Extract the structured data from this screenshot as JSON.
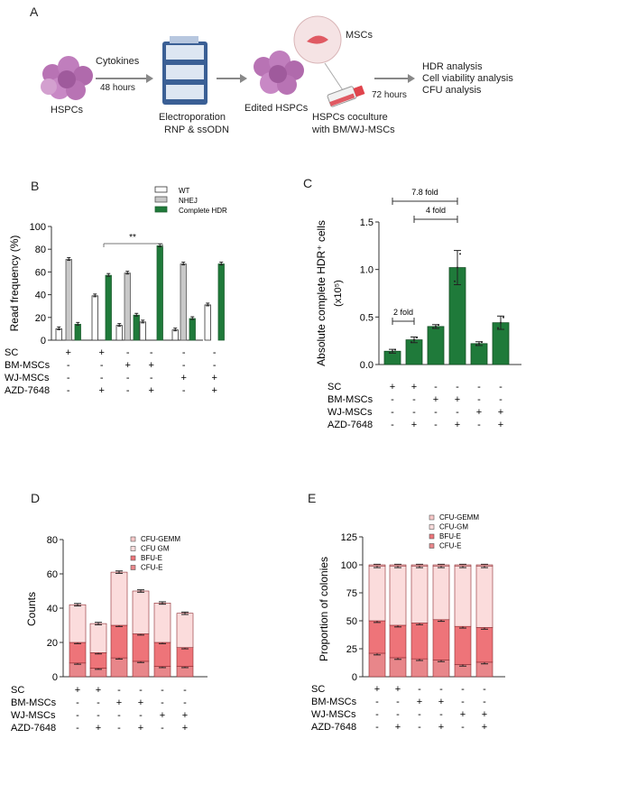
{
  "figure": {
    "panels": [
      "A",
      "B",
      "C",
      "D",
      "E"
    ],
    "schematic": {
      "hspcs": "HSPCs",
      "cytokines": "Cytokines",
      "hours48": "48 hours",
      "electroporation": "Electroporation",
      "rnp": "RNP & ssODN",
      "edited": "Edited HSPCs",
      "mscs": "MSCs",
      "coculture1": "HSPCs coculture",
      "coculture2": "with BM/WJ-MSCs",
      "hours72": "72 hours",
      "analysis": [
        "HDR analysis",
        "Cell viability analysis",
        "CFU analysis"
      ]
    },
    "condition_labels": [
      "SC",
      "BM-MSCs",
      "WJ-MSCs",
      "AZD-7648"
    ],
    "conditions": [
      [
        "+",
        "+",
        "-",
        "-",
        "-",
        "-"
      ],
      [
        "-",
        "-",
        "+",
        "+",
        "-",
        "-"
      ],
      [
        "-",
        "-",
        "-",
        "-",
        "+",
        "+"
      ],
      [
        "-",
        "+",
        "-",
        "+",
        "-",
        "+"
      ]
    ],
    "colors": {
      "wt": "#ffffff",
      "nhej": "#c8c8c8",
      "hdr": "#1f7a3a",
      "cfu_e": "#e8868a",
      "bfu_e": "#ee7479",
      "cfu_gm": "#fbdcdc",
      "cfu_gemm": "#f8c8c8"
    }
  },
  "chart_data": [
    {
      "panel": "B",
      "type": "bar",
      "ylabel": "Read frequency (%)",
      "ylim": [
        0,
        100
      ],
      "yticks": [
        0,
        20,
        40,
        60,
        80,
        100
      ],
      "categories": [
        "SC",
        "SC+AZD",
        "BM",
        "BM+AZD",
        "WJ",
        "WJ+AZD"
      ],
      "series": [
        {
          "name": "WT",
          "values": [
            10,
            39,
            13,
            16,
            9,
            31
          ]
        },
        {
          "name": "NHEJ",
          "values": [
            71,
            0,
            59,
            0,
            67,
            0
          ]
        },
        {
          "name": "Complete HDR",
          "values": [
            14,
            57,
            22,
            83,
            19,
            67
          ]
        }
      ],
      "annotation": "**"
    },
    {
      "panel": "C",
      "type": "bar",
      "ylabel": "Absolute complete HDR⁺ cells",
      "ylabel_unit": "(x10⁵)",
      "ylim": [
        0,
        1.5
      ],
      "yticks": [
        0.0,
        0.5,
        1.0,
        1.5
      ],
      "ytick_labels": [
        "0.0",
        "0.5",
        "1.0",
        "1.5"
      ],
      "categories": [
        "SC",
        "SC+AZD",
        "BM",
        "BM+AZD",
        "WJ",
        "WJ+AZD"
      ],
      "values": [
        0.14,
        0.26,
        0.4,
        1.02,
        0.22,
        0.44
      ],
      "annotations": [
        "2 fold",
        "4 fold",
        "7.8 fold"
      ]
    },
    {
      "panel": "D",
      "type": "bar",
      "stacked": true,
      "ylabel": "Counts",
      "ylim": [
        0,
        80
      ],
      "yticks": [
        0,
        20,
        40,
        60,
        80
      ],
      "categories": [
        "SC",
        "SC+AZD",
        "BM",
        "BM+AZD",
        "WJ",
        "WJ+AZD"
      ],
      "series": [
        {
          "name": "CFU-E",
          "values": [
            8,
            5,
            11,
            9,
            6,
            6
          ]
        },
        {
          "name": "BFU-E",
          "values": [
            12,
            9,
            19,
            16,
            14,
            11
          ]
        },
        {
          "name": "CFU GM",
          "values": [
            22,
            17,
            31,
            25,
            23,
            20
          ]
        },
        {
          "name": "CFU-GEMM",
          "values": [
            0,
            0,
            0,
            0,
            0,
            0
          ]
        }
      ],
      "legend": [
        "CFU-GEMM",
        "CFU GM",
        "BFU-E",
        "CFU-E"
      ]
    },
    {
      "panel": "E",
      "type": "bar",
      "stacked": true,
      "ylabel": "Proportion of colonies",
      "ylim": [
        0,
        125
      ],
      "yticks": [
        0,
        25,
        50,
        75,
        100,
        125
      ],
      "categories": [
        "SC",
        "SC+AZD",
        "BM",
        "BM+AZD",
        "WJ",
        "WJ+AZD"
      ],
      "series": [
        {
          "name": "CFU-E",
          "values": [
            21,
            17,
            16,
            15,
            11,
            13
          ]
        },
        {
          "name": "BFU-E",
          "values": [
            29,
            29,
            32,
            36,
            34,
            31
          ]
        },
        {
          "name": "CFU-GM",
          "values": [
            49,
            53,
            51,
            48,
            54,
            55
          ]
        },
        {
          "name": "CFU-GEMM",
          "values": [
            1,
            1,
            1,
            1,
            1,
            1
          ]
        }
      ],
      "legend": [
        "CFU-GEMM",
        "CFU-GM",
        "BFU-E",
        "CFU-E"
      ]
    }
  ]
}
